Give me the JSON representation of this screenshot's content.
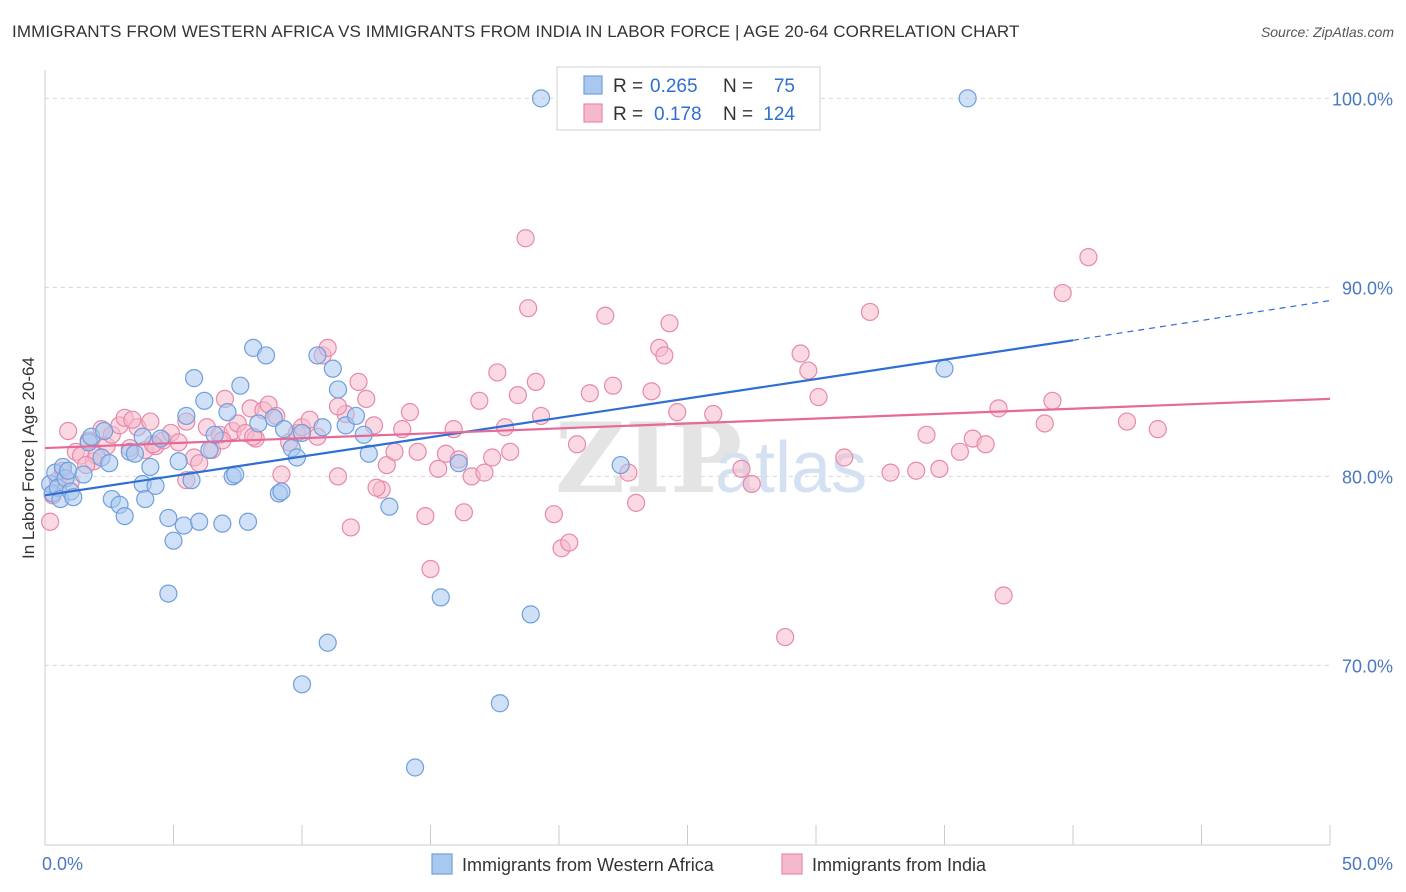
{
  "title": "IMMIGRANTS FROM WESTERN AFRICA VS IMMIGRANTS FROM INDIA IN LABOR FORCE | AGE 20-64 CORRELATION CHART",
  "source": "Source: ZipAtlas.com",
  "watermark": {
    "zip": "ZIP",
    "atlas": "atlas"
  },
  "colors": {
    "blue_fill": "#a9c8f0",
    "blue_stroke": "#6f9fdc",
    "blue_line": "#2f6fd0",
    "pink_fill": "#f5b9cc",
    "pink_stroke": "#e889a9",
    "pink_line": "#e56a98",
    "grid": "#d6d6d6",
    "tick_text": "#4a78c2"
  },
  "legend": {
    "r_label": "R =",
    "n_label": "N =",
    "entries": [
      {
        "r": "0.265",
        "n": "75"
      },
      {
        "r": "0.178",
        "n": "124"
      }
    ]
  },
  "chart_data": {
    "type": "scatter",
    "xlabel": "",
    "ylabel": "In Labor Force | Age 20-64",
    "x_tick_labels": [
      "0.0%",
      "50.0%"
    ],
    "y_tick_labels": [
      "100.0%",
      "90.0%",
      "80.0%",
      "70.0%"
    ],
    "y_ticks": [
      100,
      90,
      80,
      70
    ],
    "xlim": [
      0,
      50
    ],
    "ylim": [
      60.5,
      101.5
    ],
    "grid": true,
    "legend_position": "top-center",
    "series": [
      {
        "name": "Immigrants from Western Africa",
        "r": 0.265,
        "n": 75,
        "trend": {
          "x0": 0,
          "y0": 79.0,
          "x1": 40,
          "y1": 87.2,
          "dash_to_x": 50,
          "dash_to_y": 89.3
        },
        "points": [
          [
            0.2,
            79.6
          ],
          [
            0.3,
            79.1
          ],
          [
            0.4,
            80.2
          ],
          [
            0.5,
            79.4
          ],
          [
            0.6,
            78.8
          ],
          [
            0.7,
            80.5
          ],
          [
            0.8,
            79.9
          ],
          [
            0.9,
            80.3
          ],
          [
            1.0,
            79.2
          ],
          [
            1.1,
            78.9
          ],
          [
            1.5,
            80.1
          ],
          [
            1.7,
            81.8
          ],
          [
            1.8,
            82.1
          ],
          [
            2.2,
            81.0
          ],
          [
            2.3,
            82.4
          ],
          [
            2.5,
            80.7
          ],
          [
            2.6,
            78.8
          ],
          [
            2.9,
            78.5
          ],
          [
            3.1,
            77.9
          ],
          [
            3.3,
            81.3
          ],
          [
            3.5,
            81.2
          ],
          [
            3.8,
            79.6
          ],
          [
            3.9,
            78.8
          ],
          [
            4.1,
            80.5
          ],
          [
            4.3,
            79.5
          ],
          [
            4.5,
            82.0
          ],
          [
            4.8,
            77.8
          ],
          [
            5.0,
            76.6
          ],
          [
            5.2,
            80.8
          ],
          [
            5.4,
            77.4
          ],
          [
            5.5,
            83.2
          ],
          [
            5.7,
            79.8
          ],
          [
            5.8,
            85.2
          ],
          [
            6.0,
            77.6
          ],
          [
            6.2,
            84.0
          ],
          [
            6.4,
            81.4
          ],
          [
            6.6,
            82.2
          ],
          [
            6.9,
            77.5
          ],
          [
            7.1,
            83.4
          ],
          [
            7.3,
            80.0
          ],
          [
            7.6,
            84.8
          ],
          [
            7.9,
            77.6
          ],
          [
            8.1,
            86.8
          ],
          [
            8.3,
            82.8
          ],
          [
            8.6,
            86.4
          ],
          [
            8.9,
            83.1
          ],
          [
            9.1,
            79.1
          ],
          [
            9.3,
            82.5
          ],
          [
            9.6,
            81.5
          ],
          [
            9.8,
            81.0
          ],
          [
            10.0,
            82.3
          ],
          [
            10.6,
            86.4
          ],
          [
            10.8,
            82.6
          ],
          [
            11.2,
            85.7
          ],
          [
            11.4,
            84.6
          ],
          [
            11.7,
            82.7
          ],
          [
            12.1,
            83.2
          ],
          [
            12.4,
            82.2
          ],
          [
            12.6,
            81.2
          ],
          [
            13.4,
            78.4
          ],
          [
            15.4,
            73.6
          ],
          [
            16.1,
            80.7
          ],
          [
            17.7,
            68.0
          ],
          [
            18.9,
            72.7
          ],
          [
            19.3,
            100.0
          ],
          [
            22.4,
            80.6
          ],
          [
            35.0,
            85.7
          ],
          [
            35.9,
            100.0
          ],
          [
            4.8,
            73.8
          ],
          [
            7.4,
            80.1
          ],
          [
            11.0,
            71.2
          ],
          [
            10.0,
            69.0
          ],
          [
            14.4,
            64.6
          ],
          [
            9.2,
            79.2
          ],
          [
            3.8,
            82.1
          ]
        ]
      },
      {
        "name": "Immigrants from India",
        "r": 0.178,
        "n": 124,
        "trend": {
          "x0": 0,
          "y0": 81.5,
          "x1": 50,
          "y1": 84.1
        },
        "points": [
          [
            0.2,
            77.6
          ],
          [
            0.3,
            79.0
          ],
          [
            0.5,
            79.8
          ],
          [
            0.7,
            80.3
          ],
          [
            1.0,
            79.7
          ],
          [
            1.2,
            81.3
          ],
          [
            1.4,
            81.1
          ],
          [
            1.7,
            81.9
          ],
          [
            1.9,
            80.8
          ],
          [
            2.2,
            82.5
          ],
          [
            2.4,
            81.6
          ],
          [
            2.6,
            82.2
          ],
          [
            2.9,
            82.7
          ],
          [
            3.1,
            83.1
          ],
          [
            3.3,
            81.5
          ],
          [
            3.6,
            82.6
          ],
          [
            3.9,
            81.4
          ],
          [
            4.1,
            82.9
          ],
          [
            4.3,
            81.6
          ],
          [
            4.6,
            81.9
          ],
          [
            4.9,
            82.3
          ],
          [
            5.2,
            81.8
          ],
          [
            5.5,
            82.9
          ],
          [
            5.8,
            81.0
          ],
          [
            6.0,
            80.7
          ],
          [
            6.3,
            82.6
          ],
          [
            6.5,
            81.4
          ],
          [
            6.8,
            82.2
          ],
          [
            7.0,
            84.1
          ],
          [
            7.3,
            82.4
          ],
          [
            7.5,
            82.8
          ],
          [
            7.8,
            82.3
          ],
          [
            8.0,
            83.6
          ],
          [
            8.2,
            82.0
          ],
          [
            8.5,
            83.5
          ],
          [
            8.7,
            83.8
          ],
          [
            9.0,
            83.2
          ],
          [
            9.2,
            80.1
          ],
          [
            9.5,
            81.8
          ],
          [
            9.8,
            82.3
          ],
          [
            10.0,
            82.6
          ],
          [
            10.3,
            83.0
          ],
          [
            10.6,
            82.1
          ],
          [
            10.8,
            86.4
          ],
          [
            11.0,
            86.8
          ],
          [
            11.4,
            80.0
          ],
          [
            11.7,
            83.3
          ],
          [
            11.9,
            77.3
          ],
          [
            12.2,
            85.0
          ],
          [
            12.5,
            84.1
          ],
          [
            12.8,
            82.7
          ],
          [
            13.1,
            79.3
          ],
          [
            13.3,
            80.6
          ],
          [
            13.6,
            81.3
          ],
          [
            13.9,
            82.5
          ],
          [
            14.2,
            83.4
          ],
          [
            14.5,
            81.3
          ],
          [
            14.8,
            77.9
          ],
          [
            15.0,
            75.1
          ],
          [
            15.3,
            80.4
          ],
          [
            15.6,
            81.2
          ],
          [
            15.9,
            82.5
          ],
          [
            16.1,
            80.9
          ],
          [
            16.3,
            78.1
          ],
          [
            16.6,
            80.0
          ],
          [
            16.9,
            84.0
          ],
          [
            17.1,
            80.2
          ],
          [
            17.4,
            81.0
          ],
          [
            17.6,
            85.5
          ],
          [
            17.9,
            82.6
          ],
          [
            18.1,
            81.3
          ],
          [
            18.4,
            84.3
          ],
          [
            18.7,
            92.6
          ],
          [
            18.8,
            88.9
          ],
          [
            19.1,
            85.0
          ],
          [
            19.3,
            83.2
          ],
          [
            19.8,
            78.0
          ],
          [
            20.1,
            76.2
          ],
          [
            20.4,
            76.5
          ],
          [
            20.7,
            81.7
          ],
          [
            21.2,
            84.4
          ],
          [
            21.8,
            88.5
          ],
          [
            22.1,
            84.8
          ],
          [
            22.7,
            80.2
          ],
          [
            23.0,
            78.6
          ],
          [
            23.6,
            84.5
          ],
          [
            23.9,
            86.8
          ],
          [
            24.1,
            86.4
          ],
          [
            24.3,
            88.1
          ],
          [
            24.6,
            83.4
          ],
          [
            26.0,
            83.3
          ],
          [
            27.1,
            80.4
          ],
          [
            27.5,
            79.6
          ],
          [
            28.8,
            71.5
          ],
          [
            29.4,
            86.5
          ],
          [
            29.7,
            85.6
          ],
          [
            30.1,
            84.2
          ],
          [
            31.1,
            81.0
          ],
          [
            32.1,
            88.7
          ],
          [
            32.9,
            80.2
          ],
          [
            33.9,
            80.3
          ],
          [
            34.3,
            82.2
          ],
          [
            34.8,
            80.4
          ],
          [
            35.6,
            81.3
          ],
          [
            36.1,
            82.0
          ],
          [
            36.6,
            81.7
          ],
          [
            37.1,
            83.6
          ],
          [
            37.3,
            73.7
          ],
          [
            38.9,
            82.8
          ],
          [
            39.2,
            84.0
          ],
          [
            39.6,
            89.7
          ],
          [
            40.6,
            91.6
          ],
          [
            42.1,
            82.9
          ],
          [
            43.3,
            82.5
          ],
          [
            12.9,
            79.4
          ],
          [
            11.4,
            83.7
          ],
          [
            8.1,
            82.1
          ],
          [
            6.9,
            81.9
          ],
          [
            5.5,
            79.8
          ],
          [
            4.2,
            81.7
          ],
          [
            3.4,
            83.0
          ],
          [
            2.0,
            81.1
          ],
          [
            1.6,
            80.6
          ],
          [
            0.9,
            82.4
          ]
        ]
      }
    ]
  }
}
